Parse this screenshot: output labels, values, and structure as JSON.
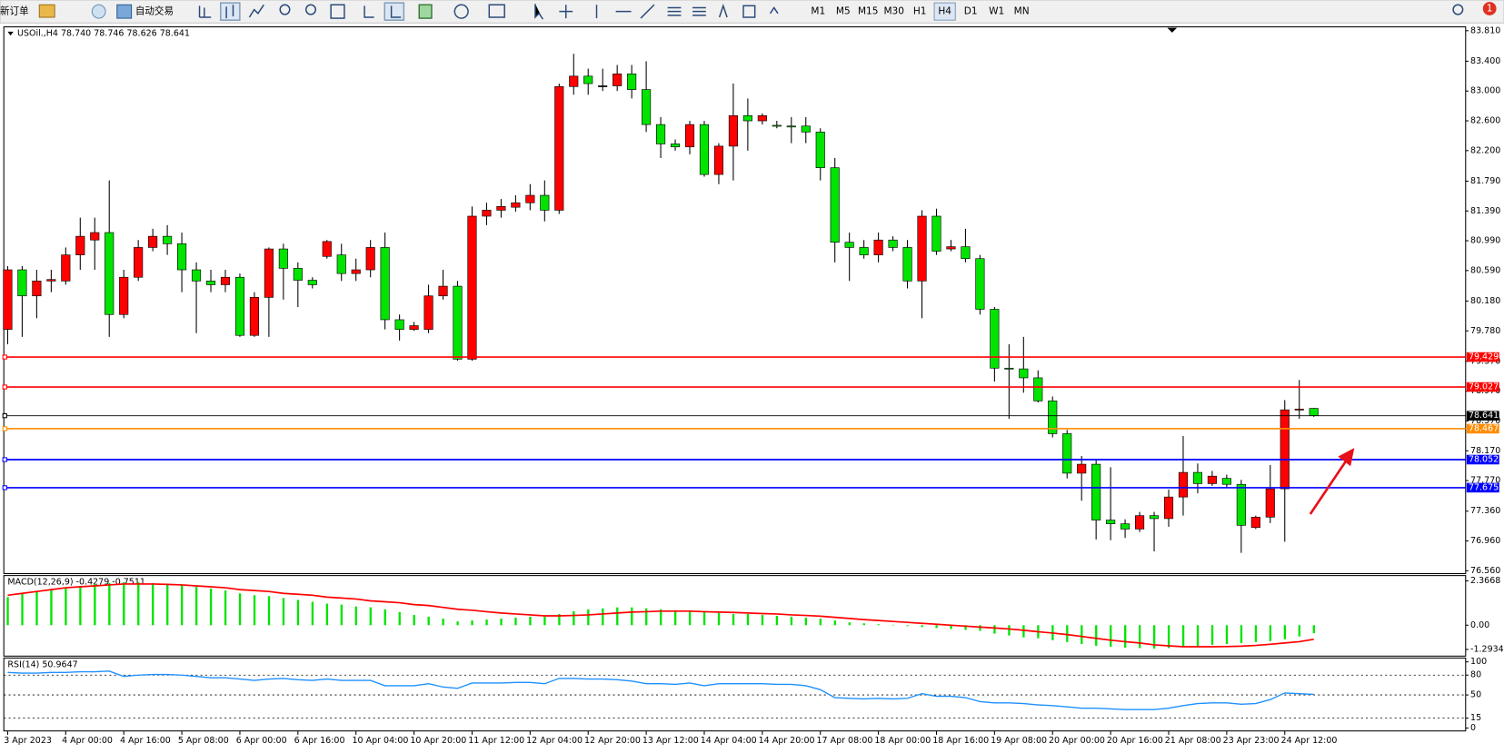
{
  "toolbar": {
    "new_order": "新订单",
    "auto_trading": "自动交易",
    "timeframes": [
      "M1",
      "M5",
      "M15",
      "M30",
      "H1",
      "H4",
      "D1",
      "W1",
      "MN"
    ],
    "alert_badge": "1"
  },
  "chart_data": [
    {
      "type": "candlestick",
      "title": "USOil.,H4 78.740 78.746 78.626 78.641",
      "categories": [
        "3 Apr 2023",
        null,
        null,
        null,
        "4 Apr 00:00",
        null,
        null,
        null,
        "4 Apr 16:00",
        null,
        null,
        null,
        "5 Apr 08:00",
        null,
        null,
        null,
        "6 Apr 00:00",
        null,
        null,
        null,
        "6 Apr 16:00",
        null,
        null,
        null,
        "10 Apr 04:00",
        null,
        null,
        null,
        "10 Apr 20:00",
        null,
        null,
        null,
        "11 Apr 12:00",
        null,
        null,
        null,
        "12 Apr 04:00",
        null,
        null,
        null,
        "12 Apr 20:00",
        null,
        null,
        null,
        "13 Apr 12:00",
        null,
        null,
        null,
        "14 Apr 04:00",
        null,
        null,
        null,
        "14 Apr 20:00",
        null,
        null,
        null,
        "17 Apr 08:00",
        null,
        null,
        null,
        "18 Apr 00:00",
        null,
        null,
        null,
        "18 Apr 16:00",
        null,
        null,
        null,
        "19 Apr 08:00",
        null,
        null,
        null,
        "20 Apr 00:00",
        null,
        null,
        null,
        "20 Apr 16:00",
        null,
        null,
        null,
        "21 Apr 08:00",
        null,
        null,
        null,
        "23 Apr 23:00",
        null,
        null,
        null,
        "24 Apr 12:00",
        null,
        null
      ],
      "open": [
        79.8,
        80.6,
        80.25,
        80.45,
        80.45,
        80.8,
        81.0,
        81.1,
        80.0,
        80.5,
        80.9,
        81.05,
        80.95,
        80.6,
        80.45,
        80.4,
        80.5,
        79.72,
        80.23,
        80.88,
        80.62,
        80.46,
        80.78,
        80.8,
        80.55,
        80.6,
        80.9,
        79.93,
        79.8,
        79.8,
        80.25,
        80.38,
        79.4,
        81.32,
        81.4,
        81.44,
        81.5,
        81.6,
        81.4,
        83.06,
        83.2,
        83.07,
        83.07,
        83.23,
        83.02,
        82.55,
        82.29,
        82.25,
        82.55,
        81.88,
        82.26,
        82.67,
        82.6,
        82.54,
        82.53,
        82.53,
        82.45,
        81.97,
        80.97,
        80.9,
        80.8,
        81.0,
        80.9,
        80.45,
        81.32,
        80.88,
        80.91,
        80.75,
        80.07,
        79.28,
        79.27,
        79.15,
        78.84,
        78.4,
        77.87,
        77.99,
        77.24,
        77.19,
        77.12,
        77.3,
        77.26,
        77.55,
        77.88,
        77.73,
        77.8,
        77.72,
        77.14,
        77.28,
        77.66,
        78.72,
        78.74
      ],
      "high": [
        80.65,
        80.65,
        80.6,
        80.6,
        80.9,
        81.3,
        81.3,
        81.8,
        80.6,
        81.0,
        81.15,
        81.2,
        81.1,
        80.7,
        80.6,
        80.6,
        80.55,
        80.3,
        80.9,
        80.95,
        80.7,
        80.5,
        81.0,
        80.95,
        80.75,
        81.0,
        81.1,
        80.0,
        79.9,
        80.4,
        80.6,
        80.45,
        81.45,
        81.5,
        81.55,
        81.6,
        81.75,
        81.8,
        83.1,
        83.5,
        83.3,
        83.3,
        83.35,
        83.35,
        83.4,
        82.65,
        82.35,
        82.6,
        82.6,
        82.3,
        83.1,
        82.9,
        82.7,
        82.6,
        82.65,
        82.65,
        82.5,
        82.1,
        81.1,
        81.0,
        81.1,
        81.05,
        81.0,
        81.4,
        81.42,
        81.0,
        81.15,
        80.8,
        80.1,
        79.6,
        79.7,
        79.25,
        78.9,
        78.45,
        78.1,
        78.05,
        77.95,
        77.25,
        77.35,
        77.35,
        77.65,
        78.37,
        78.0,
        77.9,
        77.85,
        77.78,
        77.3,
        77.98,
        78.85,
        79.12,
        78.746
      ],
      "low": [
        79.6,
        79.7,
        79.95,
        80.3,
        80.4,
        80.6,
        80.6,
        79.7,
        79.95,
        80.45,
        80.85,
        80.8,
        80.3,
        79.75,
        80.3,
        80.3,
        79.7,
        79.7,
        79.7,
        80.2,
        80.1,
        80.35,
        80.75,
        80.45,
        80.45,
        80.5,
        79.8,
        79.65,
        79.78,
        79.75,
        80.2,
        79.38,
        79.38,
        81.2,
        81.3,
        81.38,
        81.4,
        81.25,
        81.35,
        82.95,
        82.95,
        83.0,
        83.0,
        82.9,
        82.45,
        82.1,
        82.2,
        82.15,
        81.85,
        81.75,
        81.8,
        82.2,
        82.55,
        82.5,
        82.3,
        82.3,
        81.8,
        80.7,
        80.45,
        80.75,
        80.7,
        80.85,
        80.35,
        79.95,
        80.8,
        80.85,
        80.7,
        80.0,
        79.1,
        78.6,
        78.95,
        78.82,
        78.35,
        77.8,
        77.5,
        76.98,
        76.97,
        77.0,
        77.08,
        76.82,
        77.15,
        77.3,
        77.6,
        77.7,
        77.68,
        76.8,
        77.12,
        77.2,
        76.95,
        78.6,
        78.626
      ],
      "close": [
        80.6,
        80.25,
        80.45,
        80.47,
        80.8,
        81.05,
        81.1,
        80.0,
        80.5,
        80.9,
        81.05,
        80.95,
        80.6,
        80.45,
        80.4,
        80.5,
        79.72,
        80.23,
        80.88,
        80.62,
        80.46,
        80.4,
        80.98,
        80.55,
        80.6,
        80.9,
        79.93,
        79.8,
        79.85,
        80.25,
        80.38,
        79.4,
        81.32,
        81.4,
        81.45,
        81.5,
        81.6,
        81.4,
        83.06,
        83.2,
        83.1,
        83.07,
        83.23,
        83.02,
        82.55,
        82.29,
        82.25,
        82.55,
        81.88,
        82.26,
        82.67,
        82.6,
        82.67,
        82.53,
        82.52,
        82.45,
        81.97,
        80.97,
        80.9,
        80.8,
        81.0,
        80.9,
        80.45,
        81.32,
        80.85,
        80.91,
        80.75,
        80.07,
        79.28,
        79.27,
        79.15,
        78.84,
        78.4,
        77.87,
        77.99,
        77.24,
        77.19,
        77.12,
        77.3,
        77.26,
        77.55,
        77.88,
        77.73,
        77.83,
        77.72,
        77.17,
        77.28,
        77.66,
        78.72,
        78.73,
        78.641
      ],
      "up_color": "#ff0000",
      "down_color": "#00e400",
      "ylim": [
        76.56,
        83.81
      ],
      "yticks": [
        {
          "value": 83.81,
          "label": "83.810"
        },
        {
          "value": 83.4,
          "label": "83.400"
        },
        {
          "value": 83.0,
          "label": "83.000"
        },
        {
          "value": 82.6,
          "label": "82.600"
        },
        {
          "value": 82.2,
          "label": "82.200"
        },
        {
          "value": 81.79,
          "label": "81.790"
        },
        {
          "value": 81.39,
          "label": "81.390"
        },
        {
          "value": 80.99,
          "label": "80.990"
        },
        {
          "value": 80.59,
          "label": "80.590"
        },
        {
          "value": 80.18,
          "label": "80.180"
        },
        {
          "value": 79.78,
          "label": "79.780"
        },
        {
          "value": 79.37,
          "label": "79.370"
        },
        {
          "value": 78.97,
          "label": "78.970"
        },
        {
          "value": 78.57,
          "label": "78.570"
        },
        {
          "value": 78.17,
          "label": "78.170"
        },
        {
          "value": 77.77,
          "label": "77.770"
        },
        {
          "value": 77.36,
          "label": "77.360"
        },
        {
          "value": 76.96,
          "label": "76.960"
        },
        {
          "value": 76.56,
          "label": "76.560"
        }
      ],
      "levels": [
        {
          "value": 79.429,
          "color": "#ff0000"
        },
        {
          "value": 79.027,
          "color": "#ff0000"
        },
        {
          "value": 78.467,
          "color": "#ff8c00"
        },
        {
          "value": 78.052,
          "color": "#0000ff"
        },
        {
          "value": 77.675,
          "color": "#0000ff"
        }
      ],
      "price_line": {
        "value": 78.641,
        "color": "#000000"
      },
      "grid": false
    },
    {
      "type": "macd",
      "title": "MACD(12,26,9) -0.4279 -0.7511",
      "values": [
        1.5,
        1.7,
        1.8,
        1.9,
        2.0,
        2.1,
        2.2,
        2.25,
        2.3,
        2.3,
        2.25,
        2.2,
        2.15,
        2.05,
        1.95,
        1.85,
        1.7,
        1.6,
        1.55,
        1.45,
        1.35,
        1.25,
        1.15,
        1.1,
        1.0,
        0.95,
        0.85,
        0.7,
        0.55,
        0.45,
        0.35,
        0.2,
        0.25,
        0.3,
        0.35,
        0.4,
        0.45,
        0.45,
        0.6,
        0.75,
        0.85,
        0.9,
        0.95,
        0.95,
        0.9,
        0.85,
        0.8,
        0.75,
        0.7,
        0.65,
        0.6,
        0.6,
        0.55,
        0.5,
        0.45,
        0.4,
        0.35,
        0.25,
        0.15,
        0.1,
        0.05,
        0.02,
        -0.05,
        -0.1,
        -0.15,
        -0.2,
        -0.25,
        -0.3,
        -0.45,
        -0.55,
        -0.65,
        -0.7,
        -0.8,
        -0.9,
        -1.0,
        -1.1,
        -1.15,
        -1.2,
        -1.22,
        -1.25,
        -1.22,
        -1.15,
        -1.1,
        -1.05,
        -1.0,
        -0.95,
        -0.9,
        -0.85,
        -0.75,
        -0.6,
        -0.4279
      ],
      "signal": [
        1.6,
        1.7,
        1.8,
        1.9,
        2.0,
        2.05,
        2.1,
        2.15,
        2.2,
        2.2,
        2.2,
        2.18,
        2.15,
        2.1,
        2.05,
        2.0,
        1.9,
        1.85,
        1.8,
        1.7,
        1.65,
        1.6,
        1.5,
        1.45,
        1.4,
        1.3,
        1.25,
        1.2,
        1.1,
        1.05,
        0.95,
        0.85,
        0.8,
        0.72,
        0.65,
        0.6,
        0.55,
        0.5,
        0.5,
        0.52,
        0.55,
        0.6,
        0.65,
        0.7,
        0.72,
        0.75,
        0.75,
        0.75,
        0.72,
        0.7,
        0.68,
        0.65,
        0.62,
        0.6,
        0.55,
        0.52,
        0.48,
        0.42,
        0.36,
        0.3,
        0.25,
        0.2,
        0.15,
        0.1,
        0.05,
        0.0,
        -0.05,
        -0.1,
        -0.15,
        -0.2,
        -0.27,
        -0.35,
        -0.42,
        -0.5,
        -0.6,
        -0.7,
        -0.8,
        -0.88,
        -0.95,
        -1.05,
        -1.1,
        -1.15,
        -1.15,
        -1.15,
        -1.14,
        -1.12,
        -1.08,
        -1.02,
        -0.95,
        -0.88,
        -0.7511
      ],
      "color": "#00e400",
      "signal_color": "#ff0000",
      "ylim": [
        -1.6,
        2.6
      ],
      "yticks": [
        2.3668,
        {
          "value": 0,
          "label": "0.00"
        },
        -1.2934
      ]
    },
    {
      "type": "line",
      "title": "RSI(14) 50.9647",
      "values": [
        84,
        83,
        83,
        84,
        84,
        85,
        85,
        86,
        78,
        80,
        81,
        81,
        80,
        78,
        76,
        76,
        74,
        72,
        74,
        75,
        73,
        72,
        74,
        72,
        72,
        72,
        64,
        64,
        64,
        67,
        62,
        60,
        68,
        68,
        68,
        69,
        69,
        67,
        75,
        75,
        74,
        74,
        73,
        71,
        67,
        67,
        66,
        68,
        64,
        67,
        67,
        67,
        67,
        66,
        66,
        64,
        58,
        46,
        45,
        44,
        45,
        44,
        45,
        52,
        48,
        48,
        46,
        40,
        38,
        38,
        37,
        35,
        34,
        32,
        30,
        30,
        29,
        28,
        28,
        28,
        30,
        34,
        37,
        38,
        38,
        36,
        37,
        43,
        53,
        52,
        50.9647
      ],
      "color": "#1e90ff",
      "ylim": [
        0,
        100
      ],
      "yticks": [
        100,
        80,
        50,
        15,
        0
      ],
      "dashed_levels": [
        80,
        50,
        15
      ]
    }
  ]
}
